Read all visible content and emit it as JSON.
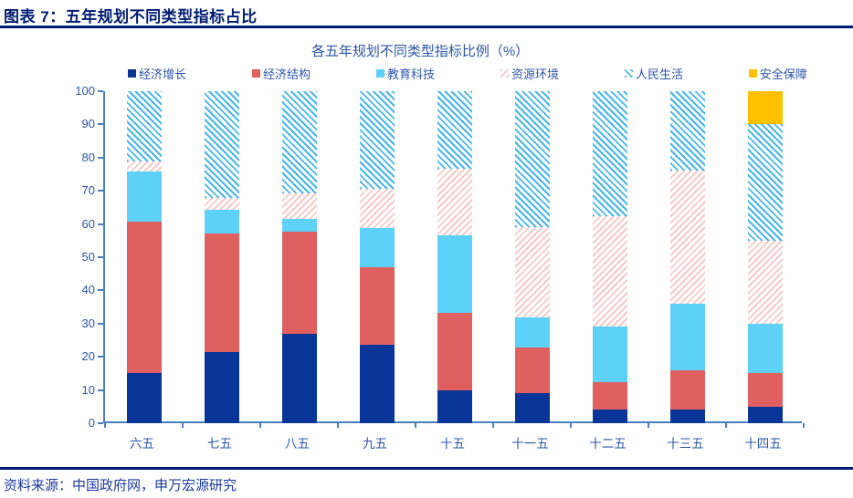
{
  "header": {
    "title": "图表 7：五年规划不同类型指标占比"
  },
  "footer": {
    "source": "资料来源：中国政府网，申万宏源研究"
  },
  "chart_data": {
    "type": "bar",
    "stacked": true,
    "title": "各五年规划不同类型指标比例（%）",
    "xlabel": "",
    "ylabel": "",
    "ylim": [
      0,
      100
    ],
    "y_ticks": [
      0,
      10,
      20,
      30,
      40,
      50,
      60,
      70,
      80,
      90,
      100
    ],
    "grid": false,
    "legend_position": "top",
    "categories": [
      "六五",
      "七五",
      "八五",
      "九五",
      "十五",
      "十一五",
      "十二五",
      "十三五",
      "十四五"
    ],
    "series": [
      {
        "name": "经济增长",
        "color": "#0a3598",
        "pattern": "solid",
        "values": [
          15.2,
          21.4,
          26.9,
          23.5,
          10.0,
          9.1,
          4.2,
          4.0,
          5.0
        ]
      },
      {
        "name": "经济结构",
        "color": "#e05f5f",
        "pattern": "solid",
        "values": [
          45.5,
          35.7,
          30.8,
          23.5,
          23.3,
          13.6,
          8.3,
          12.0,
          10.0
        ]
      },
      {
        "name": "教育科技",
        "color": "#5ed1f8",
        "pattern": "solid",
        "values": [
          15.2,
          7.1,
          3.8,
          11.8,
          23.3,
          9.1,
          16.7,
          20.0,
          15.0
        ]
      },
      {
        "name": "资源环境",
        "color": "#f8c9c9",
        "pattern": "hatch-down",
        "values": [
          3.0,
          3.6,
          7.7,
          11.8,
          20.0,
          27.3,
          33.3,
          40.0,
          25.0
        ]
      },
      {
        "name": "人民生活",
        "color": "#47b6e9",
        "pattern": "hatch-up",
        "values": [
          21.2,
          32.1,
          30.8,
          29.4,
          23.4,
          40.9,
          37.5,
          24.0,
          35.0
        ]
      },
      {
        "name": "安全保障",
        "color": "#ffc000",
        "pattern": "solid",
        "values": [
          0,
          0,
          0,
          0,
          0,
          0,
          0,
          0,
          10.0
        ]
      }
    ],
    "colors": {
      "header_navy": "#001c72",
      "chart_text_blue": "#2b55a8",
      "axis_line": "#4a7ebb",
      "footer_blue": "#1b3a9e"
    }
  }
}
